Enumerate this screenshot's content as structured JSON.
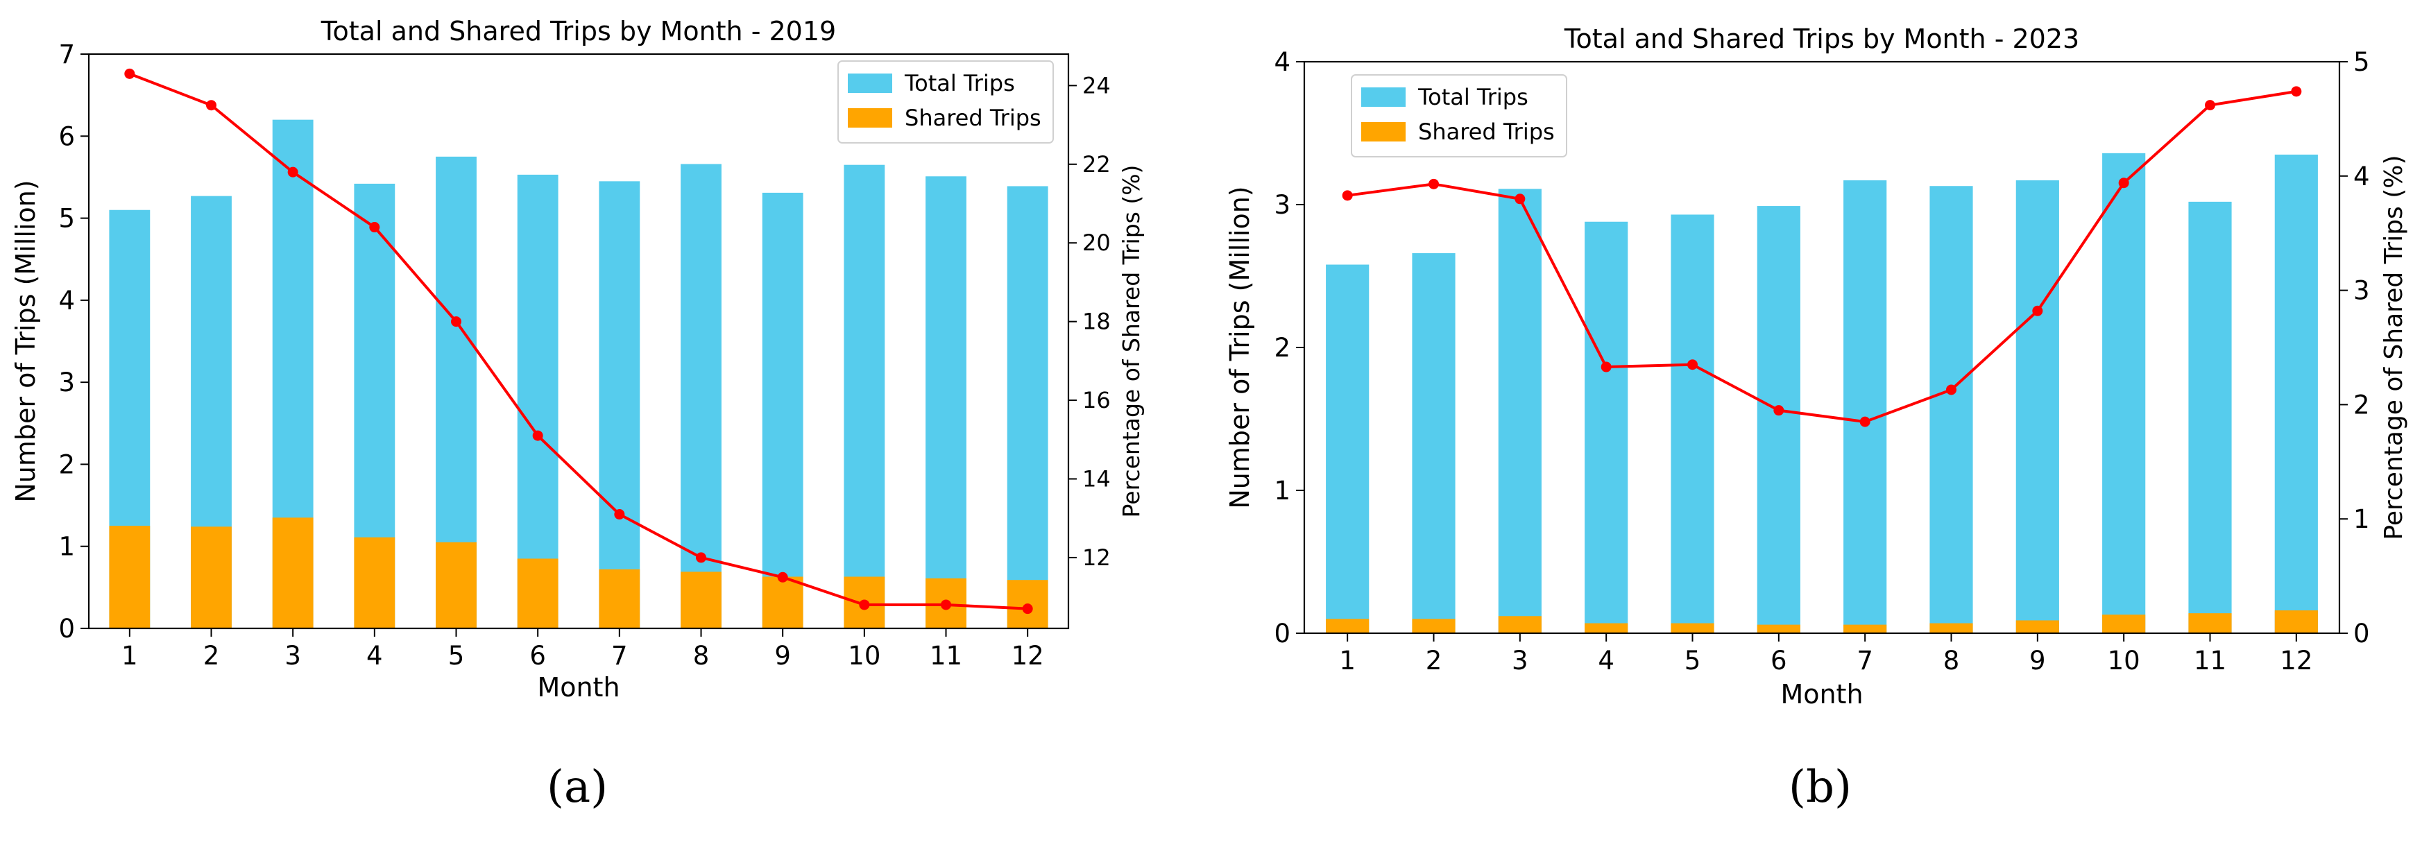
{
  "panels": [
    {
      "label": "(a)"
    },
    {
      "label": "(b)"
    }
  ],
  "colors": {
    "total": "#56CCED",
    "shared": "#FFA500",
    "line": "#FF0000"
  },
  "chart_data": [
    {
      "type": "bar",
      "stacked": "overlay",
      "title": "Total and Shared Trips by Month - 2019",
      "xlabel": "Month",
      "ylabel": "Number of Trips (Million)",
      "y2label": "Percentage of Shared Trips (%)",
      "categories": [
        "1",
        "2",
        "3",
        "4",
        "5",
        "6",
        "7",
        "8",
        "9",
        "10",
        "11",
        "12"
      ],
      "ylim": [
        0,
        7
      ],
      "yticks": [
        0,
        1,
        2,
        3,
        4,
        5,
        6,
        7
      ],
      "y2lim": [
        10.2,
        24.8
      ],
      "y2ticks": [
        12,
        14,
        16,
        18,
        20,
        22,
        24
      ],
      "legend": {
        "position": "top-right",
        "entries": [
          "Total Trips",
          "Shared Trips"
        ]
      },
      "series": [
        {
          "name": "Total Trips",
          "kind": "bar",
          "axis": "left",
          "values": [
            5.1,
            5.27,
            6.2,
            5.42,
            5.75,
            5.53,
            5.45,
            5.66,
            5.31,
            5.65,
            5.51,
            5.39
          ]
        },
        {
          "name": "Shared Trips",
          "kind": "bar",
          "axis": "left",
          "values": [
            1.25,
            1.24,
            1.35,
            1.11,
            1.05,
            0.85,
            0.72,
            0.69,
            0.63,
            0.63,
            0.61,
            0.59
          ]
        },
        {
          "kind": "line",
          "axis": "right",
          "values": [
            24.3,
            23.5,
            21.8,
            20.4,
            18.0,
            15.1,
            13.1,
            12.0,
            11.5,
            10.8,
            10.8,
            10.7
          ]
        }
      ]
    },
    {
      "type": "bar",
      "stacked": "overlay",
      "title": "Total and Shared Trips by Month - 2023",
      "xlabel": "Month",
      "ylabel": "Number of Trips (Million)",
      "y2label": "Percentage of Shared Trips (%)",
      "categories": [
        "1",
        "2",
        "3",
        "4",
        "5",
        "6",
        "7",
        "8",
        "9",
        "10",
        "11",
        "12"
      ],
      "ylim": [
        0,
        4
      ],
      "yticks": [
        0,
        1,
        2,
        3,
        4
      ],
      "y2lim": [
        0,
        5
      ],
      "y2ticks": [
        0,
        1,
        2,
        3,
        4,
        5
      ],
      "legend": {
        "position": "top-left",
        "entries": [
          "Total Trips",
          "Shared Trips"
        ]
      },
      "series": [
        {
          "name": "Total Trips",
          "kind": "bar",
          "axis": "left",
          "values": [
            2.58,
            2.66,
            3.11,
            2.88,
            2.93,
            2.99,
            3.17,
            3.13,
            3.17,
            3.36,
            3.02,
            3.35
          ]
        },
        {
          "name": "Shared Trips",
          "kind": "bar",
          "axis": "left",
          "values": [
            0.1,
            0.1,
            0.12,
            0.07,
            0.07,
            0.06,
            0.06,
            0.07,
            0.09,
            0.13,
            0.14,
            0.16
          ]
        },
        {
          "kind": "line",
          "axis": "right",
          "values": [
            3.83,
            3.93,
            3.8,
            2.33,
            2.35,
            1.95,
            1.85,
            2.13,
            2.82,
            3.94,
            4.62,
            4.74
          ]
        }
      ]
    }
  ]
}
